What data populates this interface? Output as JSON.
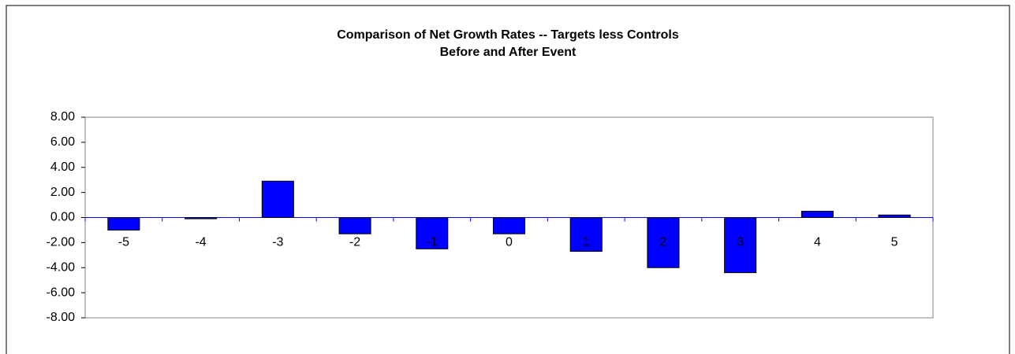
{
  "chart_data": {
    "type": "bar",
    "title": "Comparison of Net Growth Rates -- Targets less Controls",
    "subtitle": "Before and After Event",
    "categories": [
      "-5",
      "-4",
      "-3",
      "-2",
      "-1",
      "0",
      "1",
      "2",
      "3",
      "4",
      "5"
    ],
    "values": [
      -1.0,
      -0.1,
      2.9,
      -1.3,
      -2.5,
      -1.3,
      -2.7,
      -4.0,
      -4.4,
      0.5,
      0.2
    ],
    "color": "#0000ff",
    "ylim": [
      -8,
      8
    ],
    "yticks": [
      {
        "value": -8,
        "label": "-8.00"
      },
      {
        "value": -6,
        "label": "-6.00"
      },
      {
        "value": -4,
        "label": "-4.00"
      },
      {
        "value": -2,
        "label": "-2.00"
      },
      {
        "value": 0,
        "label": "0.00"
      },
      {
        "value": 2,
        "label": "2.00"
      },
      {
        "value": 4,
        "label": "4.00"
      },
      {
        "value": 6,
        "label": "6.00"
      },
      {
        "value": 8,
        "label": "8.00"
      }
    ],
    "grid": false
  }
}
